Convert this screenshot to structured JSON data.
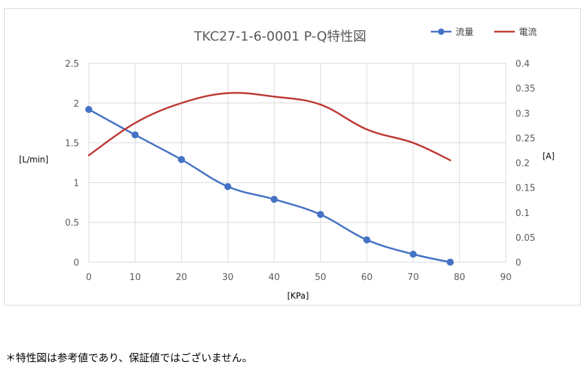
{
  "chart_data": {
    "type": "line",
    "title": "TKC27-1-6-0001 P-Q特性図",
    "xlabel": "[KPa]",
    "ylabel_left": "[L/min]",
    "ylabel_right": "[A]",
    "xlim": [
      0,
      90
    ],
    "x_ticks": [
      "0",
      "10",
      "20",
      "30",
      "40",
      "50",
      "60",
      "70",
      "80",
      "90"
    ],
    "ylim_left": [
      0,
      2.5
    ],
    "y_left_ticks": [
      "0",
      "0.5",
      "1",
      "1.5",
      "2",
      "2.5"
    ],
    "ylim_right": [
      0,
      0.4
    ],
    "y_right_ticks": [
      "0",
      "0.05",
      "0.1",
      "0.15",
      "0.2",
      "0.25",
      "0.3",
      "0.35",
      "0.4"
    ],
    "grid": true,
    "legend_position": "top-right",
    "series": [
      {
        "name": "流量",
        "axis": "left",
        "color": "#4472c4",
        "markers": true,
        "x": [
          0,
          10,
          20,
          30,
          40,
          50,
          60,
          70,
          78
        ],
        "values": [
          1.92,
          1.6,
          1.29,
          0.95,
          0.79,
          0.6,
          0.28,
          0.1,
          0.0
        ]
      },
      {
        "name": "電流",
        "axis": "right",
        "color": "#be3a34",
        "markers": false,
        "x": [
          0,
          10,
          20,
          30,
          40,
          50,
          60,
          70,
          78
        ],
        "values": [
          0.215,
          0.28,
          0.32,
          0.34,
          0.333,
          0.317,
          0.267,
          0.24,
          0.205
        ]
      }
    ]
  },
  "footnote": "＊特性図は参考値であり、保証値ではございません。"
}
